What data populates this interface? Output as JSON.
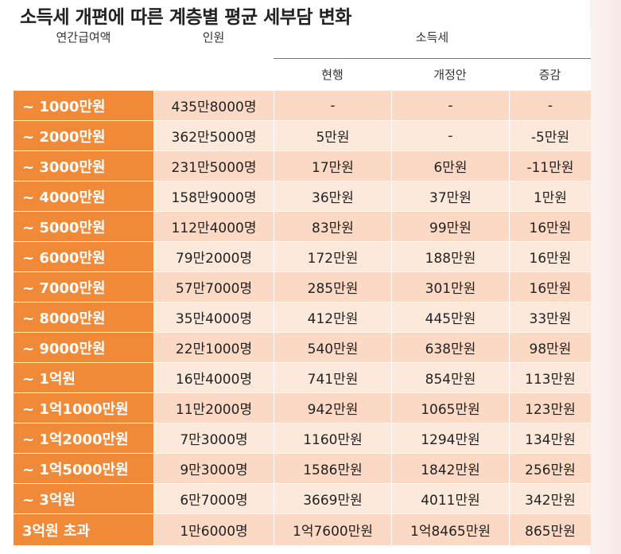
{
  "title": "소득세 개편에 따른 계층별 평균 세부담 변화",
  "headers": {
    "income": "연간급여액",
    "people": "인원",
    "tax_group": "소득세",
    "current": "현행",
    "revision": "개정안",
    "change": "증감"
  },
  "colors": {
    "band_bg": "#f08a38",
    "row_odd": "#fbd9c4",
    "row_even": "#fde9dc"
  },
  "rows": [
    {
      "band": "~ 1000만원",
      "people": "435만8000명",
      "current": "-",
      "revision": "-",
      "change": "-"
    },
    {
      "band": "~ 2000만원",
      "people": "362만5000명",
      "current": "5만원",
      "revision": "-",
      "change": "-5만원"
    },
    {
      "band": "~ 3000만원",
      "people": "231만5000명",
      "current": "17만원",
      "revision": "6만원",
      "change": "-11만원"
    },
    {
      "band": "~ 4000만원",
      "people": "158만9000명",
      "current": "36만원",
      "revision": "37만원",
      "change": "1만원"
    },
    {
      "band": "~ 5000만원",
      "people": "112만4000명",
      "current": "83만원",
      "revision": "99만원",
      "change": "16만원"
    },
    {
      "band": "~ 6000만원",
      "people": "79만2000명",
      "current": "172만원",
      "revision": "188만원",
      "change": "16만원"
    },
    {
      "band": "~ 7000만원",
      "people": "57만7000명",
      "current": "285만원",
      "revision": "301만원",
      "change": "16만원"
    },
    {
      "band": "~ 8000만원",
      "people": "35만4000명",
      "current": "412만원",
      "revision": "445만원",
      "change": "33만원"
    },
    {
      "band": "~ 9000만원",
      "people": "22만1000명",
      "current": "540만원",
      "revision": "638만원",
      "change": "98만원"
    },
    {
      "band": "~ 1억원",
      "people": "16만4000명",
      "current": "741만원",
      "revision": "854만원",
      "change": "113만원"
    },
    {
      "band": "~ 1억1000만원",
      "people": "11만2000명",
      "current": "942만원",
      "revision": "1065만원",
      "change": "123만원"
    },
    {
      "band": "~ 1억2000만원",
      "people": "7만3000명",
      "current": "1160만원",
      "revision": "1294만원",
      "change": "134만원"
    },
    {
      "band": "~ 1억5000만원",
      "people": "9만3000명",
      "current": "1586만원",
      "revision": "1842만원",
      "change": "256만원"
    },
    {
      "band": "~ 3억원",
      "people": "6만7000명",
      "current": "3669만원",
      "revision": "4011만원",
      "change": "342만원"
    },
    {
      "band": "3억원 초과",
      "people": "1만6000명",
      "current": "1억7600만원",
      "revision": "1억8465만원",
      "change": "865만원"
    }
  ]
}
